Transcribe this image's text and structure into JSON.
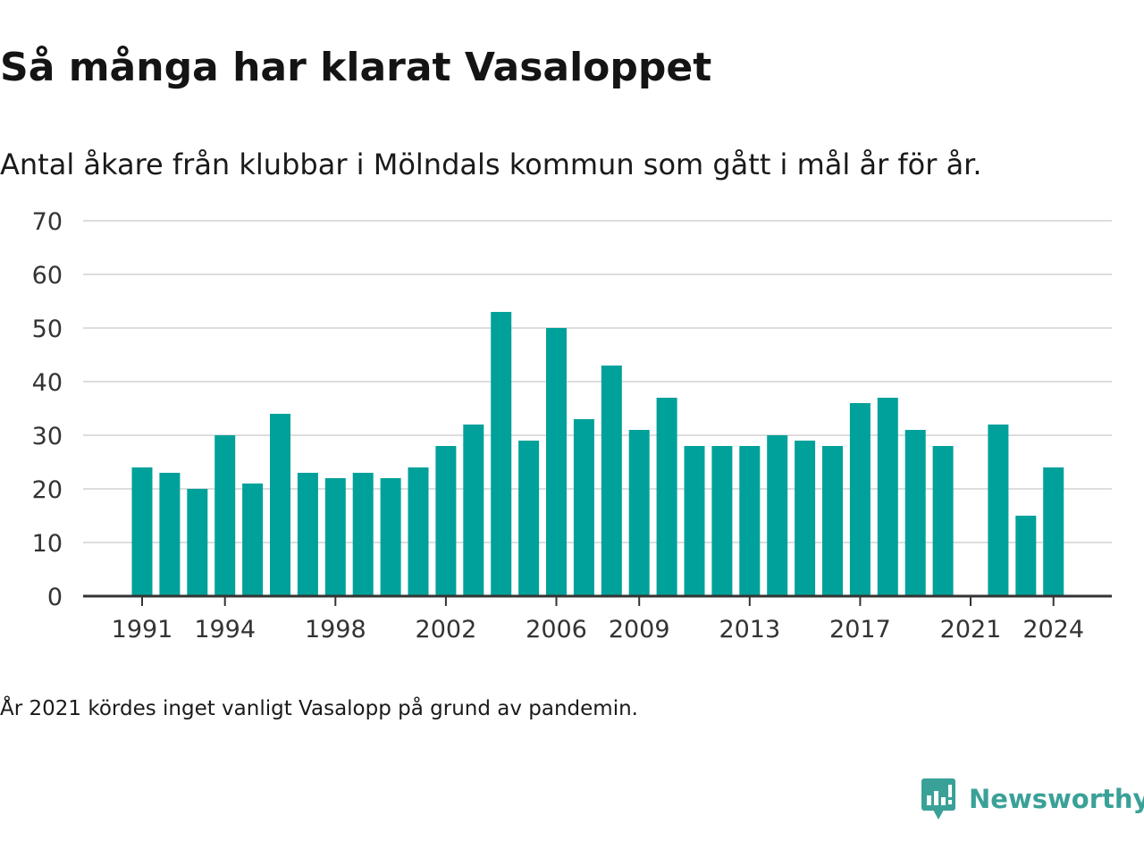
{
  "header": {
    "title": "Så många har klarat Vasaloppet",
    "subtitle": "Antal åkare från klubbar i Mölndals kommun som gått i mål år för år."
  },
  "footer": {
    "note": "År 2021 kördes inget vanligt Vasalopp på grund av pandemin.",
    "brand": "Newsworthy",
    "brand_icon": "newsworthy-logo-icon",
    "brand_color": "#3aa198"
  },
  "chart_data": {
    "type": "bar",
    "bar_color": "#00a19a",
    "grid": true,
    "ylim": [
      0,
      70
    ],
    "y_ticks": [
      "0",
      "10",
      "20",
      "30",
      "40",
      "50",
      "60",
      "70"
    ],
    "x_tick_labels": [
      "1991",
      "1994",
      "1998",
      "2002",
      "2006",
      "2009",
      "2013",
      "2017",
      "2021",
      "2024"
    ],
    "categories": [
      1991,
      1992,
      1993,
      1994,
      1995,
      1996,
      1997,
      1998,
      1999,
      2000,
      2001,
      2002,
      2003,
      2004,
      2005,
      2006,
      2007,
      2008,
      2009,
      2010,
      2011,
      2012,
      2013,
      2014,
      2015,
      2016,
      2017,
      2018,
      2019,
      2020,
      2021,
      2022,
      2023,
      2024
    ],
    "values": [
      24,
      23,
      20,
      30,
      21,
      34,
      23,
      22,
      23,
      22,
      24,
      28,
      32,
      53,
      29,
      50,
      33,
      43,
      31,
      37,
      28,
      28,
      28,
      30,
      29,
      28,
      36,
      37,
      31,
      28,
      null,
      32,
      15,
      24
    ]
  }
}
